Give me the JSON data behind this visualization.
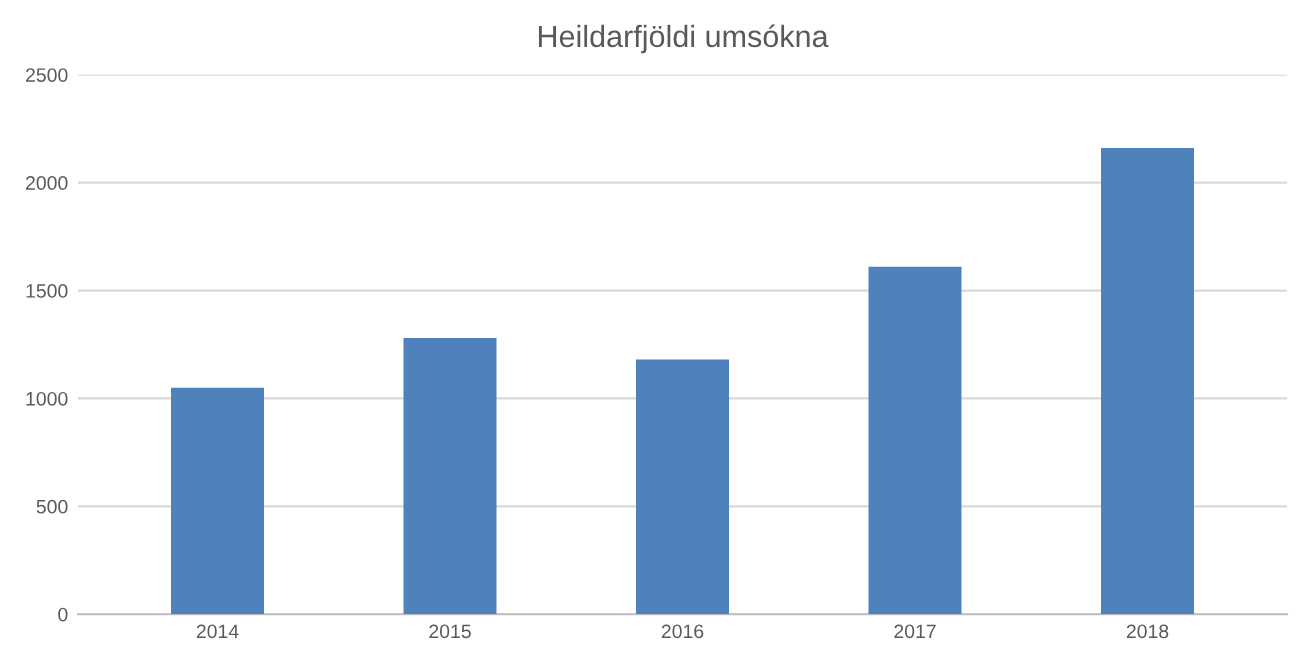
{
  "chart_data": {
    "type": "bar",
    "title": "Heildarfjöldi umsókna",
    "categories": [
      "2014",
      "2015",
      "2016",
      "2017",
      "2018"
    ],
    "values": [
      1050,
      1280,
      1180,
      1610,
      2160
    ],
    "color": "#4f81bd",
    "ylim": [
      0,
      2500
    ],
    "yticks": [
      0,
      500,
      1000,
      1500,
      2000,
      2500
    ],
    "grid": "y",
    "legend": false
  }
}
